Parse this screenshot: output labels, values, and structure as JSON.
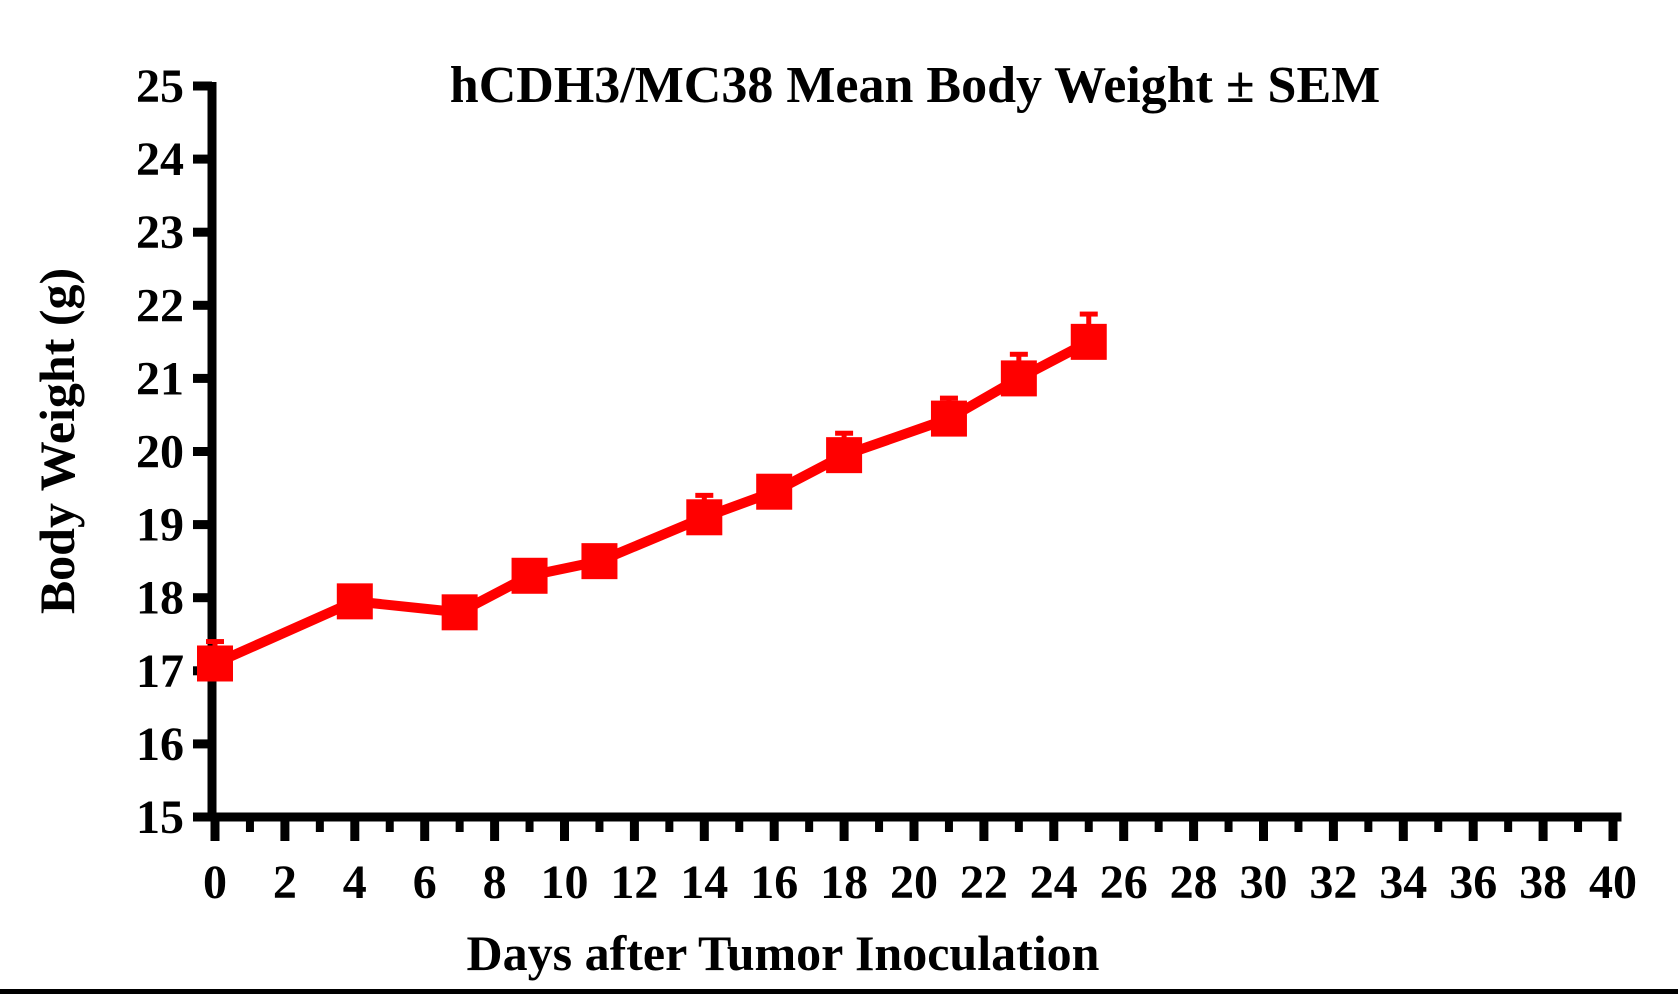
{
  "figure": {
    "background_color": "#ffffff",
    "bottom_bar_color": "#000000",
    "text_color": "#000000"
  },
  "chart_data": {
    "type": "line",
    "title": "hCDH3/MC38 Mean Body Weight ± SEM",
    "xlabel": "Days after Tumor Inoculation",
    "ylabel": "Body Weight (g)",
    "xlim": [
      0,
      40
    ],
    "ylim": [
      15,
      25
    ],
    "grid": false,
    "legend": "none",
    "error_bars": "SEM, upward caps visible on days 0, 14, 18, 21, 23, 25; others smaller than marker",
    "x_tick_labels": [
      0,
      2,
      4,
      6,
      8,
      10,
      12,
      14,
      16,
      18,
      20,
      22,
      24,
      26,
      28,
      30,
      32,
      34,
      36,
      38,
      40
    ],
    "x_minor_ticks": [
      1,
      3,
      5,
      7,
      9,
      11,
      13,
      15,
      17,
      19,
      21,
      23,
      25,
      27,
      29,
      31,
      33,
      35,
      37,
      39
    ],
    "y_tick_labels": [
      15,
      16,
      17,
      18,
      19,
      20,
      21,
      22,
      23,
      24,
      25
    ],
    "series": [
      {
        "name": "hCDH3/MC38",
        "color": "#ff0000",
        "marker": "square",
        "x": [
          0,
          4,
          7,
          9,
          11,
          14,
          16,
          18,
          21,
          23,
          25
        ],
        "y": [
          17.1,
          17.95,
          17.8,
          18.3,
          18.5,
          19.1,
          19.45,
          19.95,
          20.45,
          21.0,
          21.5
        ],
        "sem_upper": [
          0.3,
          0,
          0,
          0,
          0,
          0.3,
          0,
          0.3,
          0.28,
          0.33,
          0.38
        ]
      }
    ]
  }
}
